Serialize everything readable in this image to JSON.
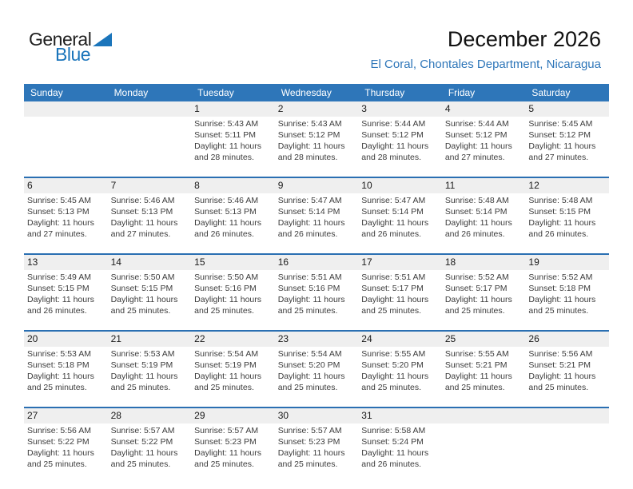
{
  "logo": {
    "part1": "General",
    "part2": "Blue"
  },
  "header": {
    "title": "December 2026",
    "subtitle": "El Coral, Chontales Department, Nicaragua"
  },
  "colors": {
    "header_bg": "#2e76b9",
    "row_border": "#2a6fb2",
    "day_band_bg": "#efefef",
    "subtitle_blue": "#2e76b9",
    "logo_blue": "#1b75bb"
  },
  "calendar": {
    "day_headers": [
      "Sunday",
      "Monday",
      "Tuesday",
      "Wednesday",
      "Thursday",
      "Friday",
      "Saturday"
    ],
    "weeks": [
      [
        {},
        {},
        {
          "day": "1",
          "lines": [
            "Sunrise: 5:43 AM",
            "Sunset: 5:11 PM",
            "Daylight: 11 hours",
            "and 28 minutes."
          ]
        },
        {
          "day": "2",
          "lines": [
            "Sunrise: 5:43 AM",
            "Sunset: 5:12 PM",
            "Daylight: 11 hours",
            "and 28 minutes."
          ]
        },
        {
          "day": "3",
          "lines": [
            "Sunrise: 5:44 AM",
            "Sunset: 5:12 PM",
            "Daylight: 11 hours",
            "and 28 minutes."
          ]
        },
        {
          "day": "4",
          "lines": [
            "Sunrise: 5:44 AM",
            "Sunset: 5:12 PM",
            "Daylight: 11 hours",
            "and 27 minutes."
          ]
        },
        {
          "day": "5",
          "lines": [
            "Sunrise: 5:45 AM",
            "Sunset: 5:12 PM",
            "Daylight: 11 hours",
            "and 27 minutes."
          ]
        }
      ],
      [
        {
          "day": "6",
          "lines": [
            "Sunrise: 5:45 AM",
            "Sunset: 5:13 PM",
            "Daylight: 11 hours",
            "and 27 minutes."
          ]
        },
        {
          "day": "7",
          "lines": [
            "Sunrise: 5:46 AM",
            "Sunset: 5:13 PM",
            "Daylight: 11 hours",
            "and 27 minutes."
          ]
        },
        {
          "day": "8",
          "lines": [
            "Sunrise: 5:46 AM",
            "Sunset: 5:13 PM",
            "Daylight: 11 hours",
            "and 26 minutes."
          ]
        },
        {
          "day": "9",
          "lines": [
            "Sunrise: 5:47 AM",
            "Sunset: 5:14 PM",
            "Daylight: 11 hours",
            "and 26 minutes."
          ]
        },
        {
          "day": "10",
          "lines": [
            "Sunrise: 5:47 AM",
            "Sunset: 5:14 PM",
            "Daylight: 11 hours",
            "and 26 minutes."
          ]
        },
        {
          "day": "11",
          "lines": [
            "Sunrise: 5:48 AM",
            "Sunset: 5:14 PM",
            "Daylight: 11 hours",
            "and 26 minutes."
          ]
        },
        {
          "day": "12",
          "lines": [
            "Sunrise: 5:48 AM",
            "Sunset: 5:15 PM",
            "Daylight: 11 hours",
            "and 26 minutes."
          ]
        }
      ],
      [
        {
          "day": "13",
          "lines": [
            "Sunrise: 5:49 AM",
            "Sunset: 5:15 PM",
            "Daylight: 11 hours",
            "and 26 minutes."
          ]
        },
        {
          "day": "14",
          "lines": [
            "Sunrise: 5:50 AM",
            "Sunset: 5:15 PM",
            "Daylight: 11 hours",
            "and 25 minutes."
          ]
        },
        {
          "day": "15",
          "lines": [
            "Sunrise: 5:50 AM",
            "Sunset: 5:16 PM",
            "Daylight: 11 hours",
            "and 25 minutes."
          ]
        },
        {
          "day": "16",
          "lines": [
            "Sunrise: 5:51 AM",
            "Sunset: 5:16 PM",
            "Daylight: 11 hours",
            "and 25 minutes."
          ]
        },
        {
          "day": "17",
          "lines": [
            "Sunrise: 5:51 AM",
            "Sunset: 5:17 PM",
            "Daylight: 11 hours",
            "and 25 minutes."
          ]
        },
        {
          "day": "18",
          "lines": [
            "Sunrise: 5:52 AM",
            "Sunset: 5:17 PM",
            "Daylight: 11 hours",
            "and 25 minutes."
          ]
        },
        {
          "day": "19",
          "lines": [
            "Sunrise: 5:52 AM",
            "Sunset: 5:18 PM",
            "Daylight: 11 hours",
            "and 25 minutes."
          ]
        }
      ],
      [
        {
          "day": "20",
          "lines": [
            "Sunrise: 5:53 AM",
            "Sunset: 5:18 PM",
            "Daylight: 11 hours",
            "and 25 minutes."
          ]
        },
        {
          "day": "21",
          "lines": [
            "Sunrise: 5:53 AM",
            "Sunset: 5:19 PM",
            "Daylight: 11 hours",
            "and 25 minutes."
          ]
        },
        {
          "day": "22",
          "lines": [
            "Sunrise: 5:54 AM",
            "Sunset: 5:19 PM",
            "Daylight: 11 hours",
            "and 25 minutes."
          ]
        },
        {
          "day": "23",
          "lines": [
            "Sunrise: 5:54 AM",
            "Sunset: 5:20 PM",
            "Daylight: 11 hours",
            "and 25 minutes."
          ]
        },
        {
          "day": "24",
          "lines": [
            "Sunrise: 5:55 AM",
            "Sunset: 5:20 PM",
            "Daylight: 11 hours",
            "and 25 minutes."
          ]
        },
        {
          "day": "25",
          "lines": [
            "Sunrise: 5:55 AM",
            "Sunset: 5:21 PM",
            "Daylight: 11 hours",
            "and 25 minutes."
          ]
        },
        {
          "day": "26",
          "lines": [
            "Sunrise: 5:56 AM",
            "Sunset: 5:21 PM",
            "Daylight: 11 hours",
            "and 25 minutes."
          ]
        }
      ],
      [
        {
          "day": "27",
          "lines": [
            "Sunrise: 5:56 AM",
            "Sunset: 5:22 PM",
            "Daylight: 11 hours",
            "and 25 minutes."
          ]
        },
        {
          "day": "28",
          "lines": [
            "Sunrise: 5:57 AM",
            "Sunset: 5:22 PM",
            "Daylight: 11 hours",
            "and 25 minutes."
          ]
        },
        {
          "day": "29",
          "lines": [
            "Sunrise: 5:57 AM",
            "Sunset: 5:23 PM",
            "Daylight: 11 hours",
            "and 25 minutes."
          ]
        },
        {
          "day": "30",
          "lines": [
            "Sunrise: 5:57 AM",
            "Sunset: 5:23 PM",
            "Daylight: 11 hours",
            "and 25 minutes."
          ]
        },
        {
          "day": "31",
          "lines": [
            "Sunrise: 5:58 AM",
            "Sunset: 5:24 PM",
            "Daylight: 11 hours",
            "and 26 minutes."
          ]
        },
        {},
        {}
      ]
    ]
  }
}
